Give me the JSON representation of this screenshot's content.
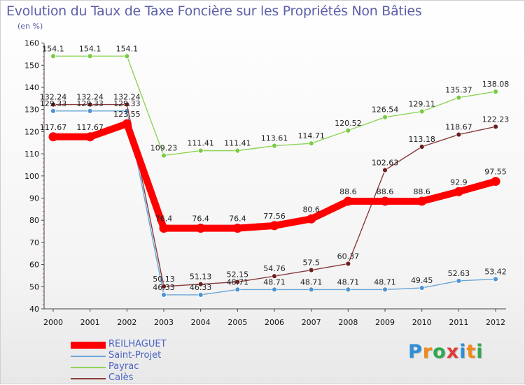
{
  "header": {
    "title": "Evolution du Taux de Taxe Foncière sur les Propriétés Non Bâties",
    "unit": "(en %)"
  },
  "logo": {
    "text": "Proxiti",
    "letters": [
      "P",
      "r",
      "o",
      "x",
      "i",
      "t",
      "i"
    ],
    "colors": [
      "#2f8fd6",
      "#f08a1c",
      "#2fa84f",
      "#e23a3a",
      "#2f8fd6",
      "#f08a1c",
      "#2fa84f"
    ]
  },
  "chart_data": {
    "type": "line",
    "title": "Evolution du Taux de Taxe Foncière sur les Propriétés Non Bâties",
    "ylabel": "(en %)",
    "xlabel": "",
    "x": [
      "2000",
      "2001",
      "2002",
      "2003",
      "2004",
      "2005",
      "2006",
      "2007",
      "2008",
      "2009",
      "2010",
      "2011",
      "2012"
    ],
    "ylim": [
      40,
      160
    ],
    "yticks": [
      "40",
      "50",
      "60",
      "70",
      "80",
      "90",
      "100",
      "110",
      "120",
      "130",
      "140",
      "150",
      "160"
    ],
    "grid": false,
    "legend_position": "bottom-left",
    "series": [
      {
        "name": "Payrac",
        "color": "#8fd45a",
        "marker_fill": "#7acb45",
        "width": 1.4,
        "marker_r": 3.5,
        "values": [
          154.1,
          154.1,
          154.1,
          109.23,
          111.41,
          111.41,
          113.61,
          114.71,
          120.52,
          126.54,
          129.11,
          135.37,
          138.08
        ],
        "labels": [
          "154.1",
          "154.1",
          "154.1",
          "109.23",
          "111.41",
          "111.41",
          "113.61",
          "114.71",
          "120.52",
          "126.54",
          "129.11",
          "135.37",
          "138.08"
        ]
      },
      {
        "name": "Saint-Projet",
        "color": "#6aa6d8",
        "marker_fill": "#4f93cf",
        "width": 1.4,
        "marker_r": 3.5,
        "values": [
          129.33,
          129.33,
          129.33,
          46.33,
          46.33,
          48.71,
          48.71,
          48.71,
          48.71,
          48.71,
          49.45,
          52.63,
          53.42
        ],
        "labels": [
          "129.33",
          "129.33",
          "129.33",
          "46.33",
          "46.33",
          "48.71",
          "48.71",
          "48.71",
          "48.71",
          "48.71",
          "49.45",
          "52.63",
          "53.42"
        ]
      },
      {
        "name": "Calès",
        "color": "#8a3a3a",
        "marker_fill": "#6b1f1f",
        "width": 1.4,
        "marker_r": 3.5,
        "values": [
          132.24,
          132.24,
          132.24,
          50.13,
          51.13,
          52.15,
          54.76,
          57.5,
          60.37,
          102.63,
          113.18,
          118.67,
          122.23
        ],
        "labels": [
          "132.24",
          "132.24",
          "132.24",
          "50.13",
          "51.13",
          "52.15",
          "54.76",
          "57.5",
          "60.37",
          "102.63",
          "113.18",
          "118.67",
          "122.23"
        ]
      },
      {
        "name": "REILHAGUET",
        "color": "#ff0000",
        "marker_fill": "#ff0000",
        "width": 10,
        "marker_r": 6.5,
        "values": [
          117.67,
          117.67,
          123.55,
          76.4,
          76.4,
          76.4,
          77.56,
          80.6,
          88.6,
          88.6,
          88.6,
          92.9,
          97.55
        ],
        "labels": [
          "117.67",
          "117.67",
          "123.55",
          "76.4",
          "76.4",
          "76.4",
          "77.56",
          "80.6",
          "88.6",
          "88.6",
          "88.6",
          "92.9",
          "97.55"
        ]
      }
    ],
    "legend": [
      {
        "name": "REILHAGUET",
        "color": "#ff0000",
        "width": 10
      },
      {
        "name": "Saint-Projet",
        "color": "#6aa6d8",
        "width": 2
      },
      {
        "name": "Payrac",
        "color": "#8fd45a",
        "width": 2
      },
      {
        "name": "Calès",
        "color": "#8a3a3a",
        "width": 2
      }
    ]
  }
}
